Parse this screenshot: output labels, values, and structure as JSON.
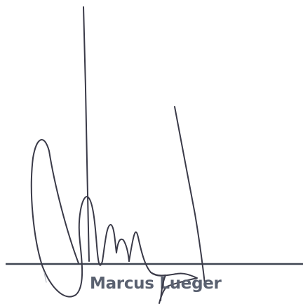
{
  "signature_block": {
    "signer_name": "Marcus Lueger",
    "colors": {
      "ink": "#3a3a48",
      "line": "#3f4552",
      "name_text": "#5a6170",
      "background": "#ffffff"
    }
  }
}
